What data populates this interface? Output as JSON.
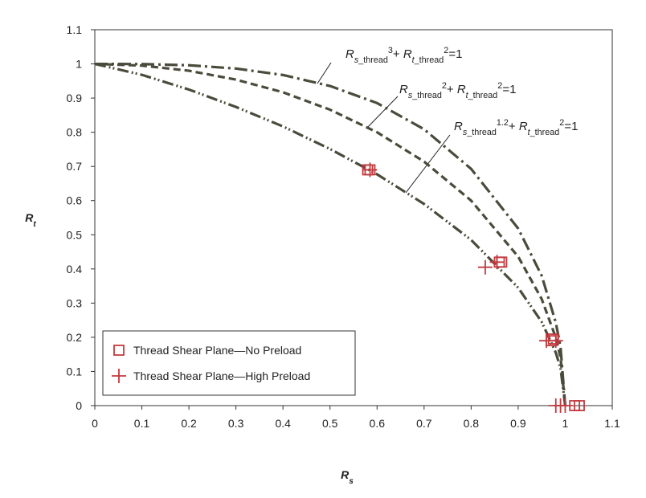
{
  "chart_data": {
    "type": "line",
    "x_label": [
      {
        "t": "R",
        "s": "i"
      },
      {
        "t": "s",
        "s": "sub-i"
      }
    ],
    "y_label": [
      {
        "t": "R",
        "s": "i"
      },
      {
        "t": "t",
        "s": "sub-i"
      }
    ],
    "xlim": [
      0,
      1.1
    ],
    "ylim": [
      0,
      1.1
    ],
    "xticks": [
      0,
      0.1,
      0.2,
      0.3,
      0.4,
      0.5,
      0.6,
      0.7,
      0.8,
      0.9,
      1,
      1.1
    ],
    "yticks": [
      0,
      0.1,
      0.2,
      0.3,
      0.4,
      0.5,
      0.6,
      0.7,
      0.8,
      0.9,
      1,
      1.1
    ],
    "annotations": [
      [
        {
          "t": "R",
          "s": "i"
        },
        {
          "t": "s",
          "s": "sub-i"
        },
        {
          "t": "_thread",
          "s": "sub"
        },
        {
          "t": "3",
          "s": "sup"
        },
        {
          "t": "+ ",
          "s": "n"
        },
        {
          "t": "R",
          "s": "i"
        },
        {
          "t": "t",
          "s": "sub-i"
        },
        {
          "t": "_thread",
          "s": "sub"
        },
        {
          "t": "2",
          "s": "sup"
        },
        {
          "t": "=1",
          "s": "n"
        }
      ],
      [
        {
          "t": "R",
          "s": "i"
        },
        {
          "t": "s",
          "s": "sub-i"
        },
        {
          "t": "_thread",
          "s": "sub"
        },
        {
          "t": "2",
          "s": "sup"
        },
        {
          "t": "+ ",
          "s": "n"
        },
        {
          "t": "R",
          "s": "i"
        },
        {
          "t": "t",
          "s": "sub-i"
        },
        {
          "t": "_thread",
          "s": "sub"
        },
        {
          "t": "2",
          "s": "sup"
        },
        {
          "t": "=1",
          "s": "n"
        }
      ],
      [
        {
          "t": "R",
          "s": "i"
        },
        {
          "t": "s",
          "s": "sub-i"
        },
        {
          "t": "_thread",
          "s": "sub"
        },
        {
          "t": "1.2",
          "s": "sup"
        },
        {
          "t": "+ ",
          "s": "n"
        },
        {
          "t": "R",
          "s": "i"
        },
        {
          "t": "t",
          "s": "sub-i"
        },
        {
          "t": "_thread",
          "s": "sub"
        },
        {
          "t": "2",
          "s": "sup"
        },
        {
          "t": "=1",
          "s": "n"
        }
      ]
    ],
    "series": [
      {
        "type": "line",
        "color": "#4b4b3c",
        "dash": "16 5 3 5",
        "x": [
          0,
          0.1,
          0.2,
          0.3,
          0.4,
          0.5,
          0.6,
          0.7,
          0.8,
          0.9,
          0.95,
          0.98,
          0.99,
          1
        ],
        "values": [
          1,
          0.9995,
          0.996,
          0.9864,
          0.9675,
          0.9354,
          0.8854,
          0.8087,
          0.6928,
          0.5183,
          0.3802,
          0.243,
          0.172,
          0
        ]
      },
      {
        "type": "line",
        "color": "#4b4b3c",
        "dash": "9 5",
        "x": [
          0,
          0.1,
          0.2,
          0.3,
          0.4,
          0.5,
          0.6,
          0.7,
          0.8,
          0.9,
          0.95,
          0.98,
          0.99,
          1
        ],
        "values": [
          1,
          0.995,
          0.98,
          0.954,
          0.917,
          0.866,
          0.8,
          0.714,
          0.6,
          0.436,
          0.312,
          0.199,
          0.141,
          0
        ]
      },
      {
        "type": "line",
        "color": "#4b4b3c",
        "dash": "14 4 2 3 2 4",
        "x": [
          0,
          0.1,
          0.2,
          0.3,
          0.4,
          0.5,
          0.6,
          0.7,
          0.8,
          0.9,
          0.95,
          0.98,
          0.99,
          1
        ],
        "values": [
          1,
          0.968,
          0.925,
          0.874,
          0.817,
          0.751,
          0.677,
          0.59,
          0.485,
          0.345,
          0.245,
          0.155,
          0.11,
          0
        ]
      },
      {
        "type": "scatter",
        "name": "Thread Shear Plane—No Preload",
        "color": "#c23a3f",
        "marker": "square",
        "x": [
          0.58,
          0.585,
          0.86,
          0.865,
          0.97,
          0.975,
          1.02,
          1.03
        ],
        "values": [
          0.69,
          0.69,
          0.42,
          0.42,
          0.19,
          0.195,
          0,
          0
        ]
      },
      {
        "type": "scatter",
        "name": "Thread Shear Plane—High Preload",
        "color": "#c23a3f",
        "marker": "plus",
        "x": [
          0.585,
          0.83,
          0.855,
          0.96,
          0.98,
          0.98,
          0.99,
          1.0
        ],
        "values": [
          0.69,
          0.405,
          0.42,
          0.19,
          0.19,
          0,
          0,
          0
        ]
      }
    ],
    "legend": "lower-left"
  }
}
